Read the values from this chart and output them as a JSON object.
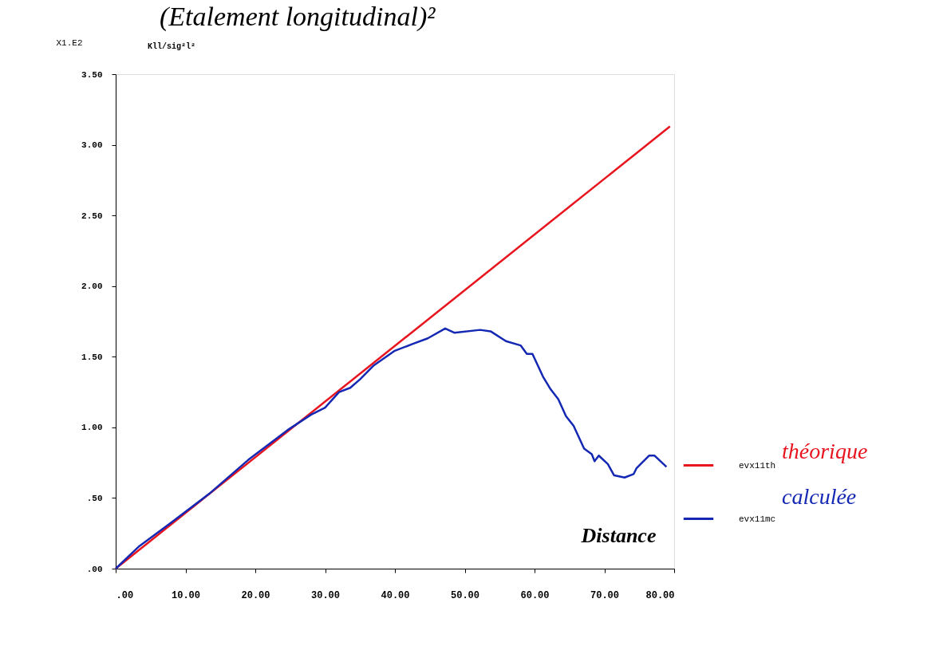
{
  "chart_data": {
    "type": "line",
    "title": "(Etalement longitudinal)²",
    "ylabel": "X1.E2",
    "xlabel": "Distance",
    "annotations": [
      "Kll/sig²l²",
      "théorique",
      "calculée"
    ],
    "xlim": [
      0,
      80
    ],
    "ylim": [
      0,
      3.5
    ],
    "xticks": [
      {
        "value": 0,
        "label": ".00"
      },
      {
        "value": 10,
        "label": "10.00"
      },
      {
        "value": 20,
        "label": "20.00"
      },
      {
        "value": 30,
        "label": "30.00"
      },
      {
        "value": 40,
        "label": "40.00"
      },
      {
        "value": 50,
        "label": "50.00"
      },
      {
        "value": 60,
        "label": "60.00"
      },
      {
        "value": 70,
        "label": "70.00"
      },
      {
        "value": 80,
        "label": "80.00"
      }
    ],
    "yticks": [
      {
        "value": 0,
        "label": ".00"
      },
      {
        "value": 0.5,
        "label": ".50"
      },
      {
        "value": 1,
        "label": "1.00"
      },
      {
        "value": 1.5,
        "label": "1.50"
      },
      {
        "value": 2,
        "label": "2.00"
      },
      {
        "value": 2.5,
        "label": "2.50"
      },
      {
        "value": 3,
        "label": "3.00"
      },
      {
        "value": 3.5,
        "label": "3.50"
      }
    ],
    "grid": false,
    "legend": "bottom right",
    "line_style": "solid",
    "marker": "none",
    "series": [
      {
        "name": "evx11th",
        "color": "#e8141e",
        "x": [
          0,
          79.4
        ],
        "values": [
          0,
          3.13
        ]
      },
      {
        "name": "evx11mc",
        "color": "#1428b4",
        "x": [
          0,
          3.4,
          7.8,
          13.4,
          19.0,
          24.6,
          28.0,
          30.0,
          32.0,
          33.6,
          35.0,
          37.0,
          39.9,
          42.5,
          44.7,
          47.2,
          48.5,
          52.2,
          53.7,
          55.9,
          58.0,
          58.9,
          59.7,
          61.2,
          62.3,
          63.4,
          64.5,
          65.6,
          67.1,
          68.2,
          68.6,
          69.2,
          70.5,
          71.4,
          72.9,
          74.2,
          74.6,
          76.4,
          77.2,
          78.9
        ],
        "values": [
          0,
          0.16,
          0.32,
          0.53,
          0.77,
          0.98,
          1.09,
          1.14,
          1.25,
          1.28,
          1.34,
          1.44,
          1.54,
          1.59,
          1.63,
          1.7,
          1.67,
          1.69,
          1.68,
          1.61,
          1.58,
          1.52,
          1.52,
          1.36,
          1.27,
          1.2,
          1.08,
          1.01,
          0.85,
          0.81,
          0.76,
          0.8,
          0.74,
          0.66,
          0.645,
          0.67,
          0.71,
          0.8,
          0.8,
          0.72
        ]
      }
    ]
  }
}
